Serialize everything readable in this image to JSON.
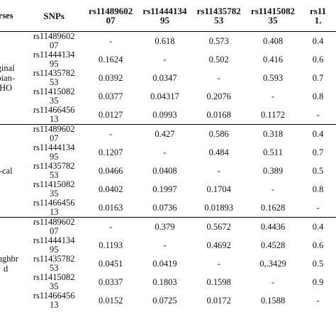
{
  "header": {
    "breed": "rses",
    "snps": "SNPs",
    "cols": [
      [
        "rs11489602",
        "07"
      ],
      [
        "rs11444134",
        "95"
      ],
      [
        "rs11435782",
        "53"
      ],
      [
        "rs11415082",
        "35"
      ],
      [
        "rs11",
        "1."
      ]
    ]
  },
  "groups": [
    {
      "breed": [
        "ginal",
        "bian-",
        "HO"
      ],
      "rows": [
        {
          "snp": [
            "rs11489602",
            "07"
          ],
          "vals": [
            "-",
            "0.618",
            "0.573",
            "0.408",
            "0.4"
          ]
        },
        {
          "snp": [
            "rs11444134",
            "95"
          ],
          "vals": [
            "0.1624",
            "-",
            "0.502",
            "0.416",
            "0.6"
          ]
        },
        {
          "snp": [
            "rs11435782",
            "53"
          ],
          "vals": [
            "0.0392",
            "0.0347",
            "-",
            "0.593",
            "0.7"
          ]
        },
        {
          "snp": [
            "rs11415082",
            "35"
          ],
          "vals": [
            "0.0377",
            "0.04317",
            "0.2076",
            "-",
            "0.8"
          ]
        },
        {
          "snp": [
            "rs11466456",
            "13"
          ],
          "vals": [
            "0.0127",
            "0.0993",
            "0.0168",
            "0.1172",
            "-"
          ]
        }
      ]
    },
    {
      "breed": [
        "-cal"
      ],
      "rows": [
        {
          "snp": [
            "rs11489602",
            "07"
          ],
          "vals": [
            "-",
            "0.427",
            "0.586",
            "0.318",
            "0.4"
          ]
        },
        {
          "snp": [
            "rs11444134",
            "95"
          ],
          "vals": [
            "0.1207",
            "-",
            "0.484",
            "0.511",
            "0.7"
          ]
        },
        {
          "snp": [
            "rs11435782",
            "53"
          ],
          "vals": [
            "0.0466",
            "0.0408",
            "-",
            "0.389",
            "0.5"
          ]
        },
        {
          "snp": [
            "rs11415082",
            "35"
          ],
          "vals": [
            "0.0402",
            "0.1997",
            "0.1704",
            "-",
            "0.8"
          ]
        },
        {
          "snp": [
            "rs11466456",
            "13"
          ],
          "vals": [
            "0.0163",
            "0.0736",
            "0.01893",
            "0.1628",
            "-"
          ]
        }
      ]
    },
    {
      "breed": [
        "oughbr",
        "d"
      ],
      "rows": [
        {
          "snp": [
            "rs11489602",
            "07"
          ],
          "vals": [
            "-",
            "0.379",
            "0.5672",
            "0.4436",
            "0.4"
          ]
        },
        {
          "snp": [
            "rs11444134",
            "95"
          ],
          "vals": [
            "0.1193",
            "-",
            "0.4692",
            "0.4528",
            "0.6"
          ]
        },
        {
          "snp": [
            "rs11435782",
            "53"
          ],
          "vals": [
            "0.0451",
            "0.0419",
            "-",
            "0,.3429",
            "0.5"
          ]
        },
        {
          "snp": [
            "rs11415082",
            "35"
          ],
          "vals": [
            "0.0337",
            "0.1803",
            "0.1598",
            "-",
            "0.9"
          ]
        },
        {
          "snp": [
            "rs11466456",
            "13"
          ],
          "vals": [
            "0.0152",
            "0.0725",
            "0.0172",
            "0.1588",
            "-"
          ]
        }
      ]
    }
  ]
}
